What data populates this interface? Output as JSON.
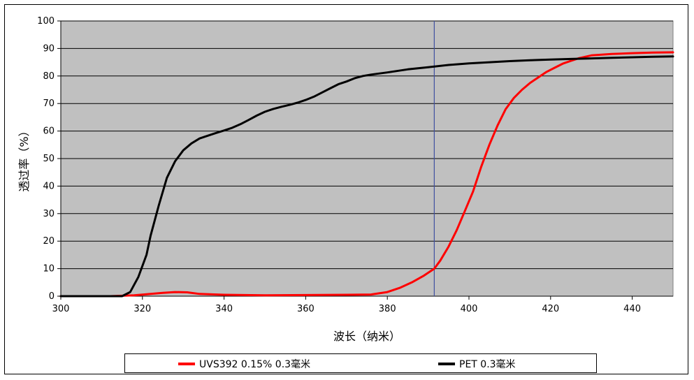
{
  "chart_data": {
    "type": "line",
    "title": "",
    "xlabel": "波长（纳米）",
    "ylabel": "透过率（%）",
    "xlim": [
      300,
      450
    ],
    "ylim": [
      0,
      100
    ],
    "x_ticks": [
      300,
      320,
      340,
      360,
      380,
      400,
      420,
      440
    ],
    "y_ticks": [
      0,
      10,
      20,
      30,
      40,
      50,
      60,
      70,
      80,
      90,
      100
    ],
    "grid": "horizontal",
    "background": "#c0c0c0",
    "reference_line": {
      "x": 391.5,
      "color": "#3f4fa0"
    },
    "legend_position": "bottom",
    "series": [
      {
        "name": "UVS392  0.15%  0.3毫米",
        "color": "#ff0000",
        "x": [
          300,
          312,
          318,
          322,
          325,
          328,
          331,
          334,
          340,
          350,
          360,
          370,
          376,
          380,
          383,
          386,
          389,
          391.5,
          393,
          395,
          397,
          399,
          401,
          403,
          405,
          407,
          409,
          411,
          413,
          415,
          417,
          419,
          421,
          423,
          425,
          427,
          430,
          435,
          440,
          445,
          450
        ],
        "y": [
          0,
          0,
          0.3,
          0.8,
          1.2,
          1.5,
          1.4,
          0.8,
          0.5,
          0.3,
          0.4,
          0.5,
          0.6,
          1.5,
          3,
          5,
          7.5,
          10,
          13,
          18,
          24,
          31,
          38,
          47,
          55,
          62,
          68,
          72,
          75,
          77.5,
          79.5,
          81.5,
          83,
          84.5,
          85.5,
          86.5,
          87.5,
          88,
          88.3,
          88.5,
          88.6
        ]
      },
      {
        "name": "PET  0.3毫米",
        "color": "#000000",
        "x": [
          300,
          315,
          317,
          319,
          321,
          322,
          324,
          326,
          328,
          330,
          332,
          334,
          336,
          338,
          340,
          342,
          344,
          346,
          348,
          350,
          352,
          354,
          356,
          358,
          360,
          362,
          364,
          366,
          368,
          370,
          372,
          374,
          376,
          380,
          385,
          390,
          395,
          400,
          405,
          410,
          415,
          420,
          425,
          430,
          435,
          440,
          445,
          450
        ],
        "y": [
          0,
          0,
          1.5,
          7,
          15,
          22,
          33,
          43,
          49,
          53,
          55.5,
          57.3,
          58.3,
          59.3,
          60.2,
          61.2,
          62.5,
          64,
          65.6,
          67,
          68,
          68.8,
          69.5,
          70.3,
          71.3,
          72.5,
          74,
          75.5,
          77,
          78,
          79.2,
          80,
          80.5,
          81.3,
          82.4,
          83.2,
          84,
          84.6,
          85,
          85.4,
          85.7,
          86,
          86.2,
          86.4,
          86.6,
          86.8,
          87,
          87.1
        ]
      }
    ]
  }
}
